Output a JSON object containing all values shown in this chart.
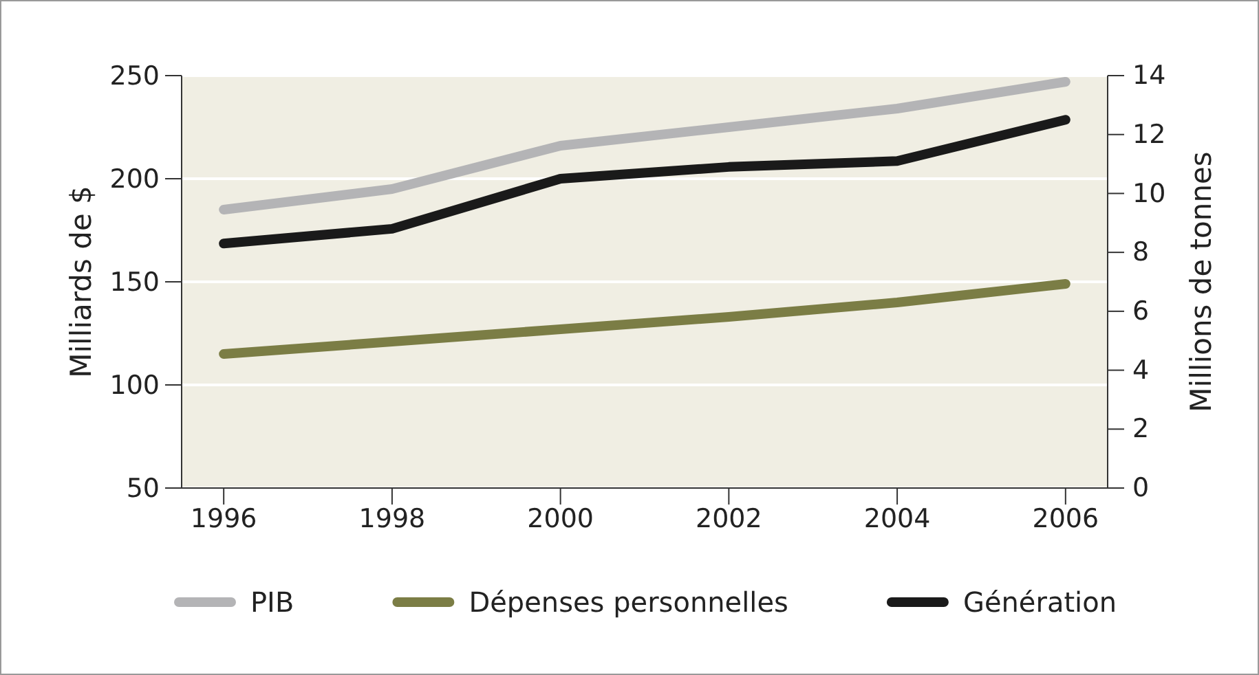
{
  "chart_data": {
    "type": "line",
    "ylabel": "Milliards de $",
    "y2label": "Millions de tonnes",
    "x": [
      1996,
      1998,
      2000,
      2002,
      2004,
      2006
    ],
    "xlim": [
      1995.5,
      2006.5
    ],
    "xticks": [
      1996,
      1998,
      2000,
      2002,
      2004,
      2006
    ],
    "ylim": [
      50,
      250
    ],
    "yticks": [
      50,
      100,
      150,
      200,
      250
    ],
    "y2lim": [
      0,
      14
    ],
    "y2ticks": [
      0,
      2,
      4,
      6,
      8,
      10,
      12,
      14
    ],
    "grid": "y",
    "legend": "bottom",
    "line_style": "solid",
    "marker": "none",
    "series": [
      {
        "name": "PIB",
        "color": "#b4b4b6",
        "values": [
          185,
          195,
          216,
          225,
          234,
          247
        ]
      },
      {
        "name": "Dépenses personnelles",
        "color": "#7b7d45",
        "values": [
          115,
          121,
          127,
          133,
          140,
          149
        ]
      },
      {
        "name": "Génération",
        "color": "#1a1a1a",
        "axis": "y2",
        "values": [
          8.3,
          8.8,
          10.5,
          10.9,
          11.1,
          12.5
        ]
      }
    ]
  }
}
